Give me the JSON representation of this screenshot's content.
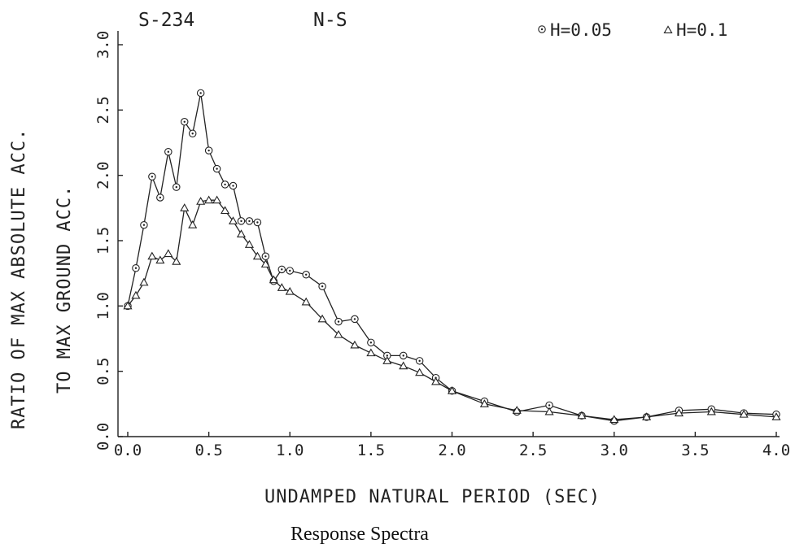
{
  "chart_data": {
    "type": "line",
    "station": "S-234",
    "component": "N-S",
    "xlabel": "UNDAMPED NATURAL PERIOD (SEC)",
    "ylabel": "RATIO OF MAX ABSOLUTE ACC.",
    "ylabel2": "TO MAX GROUND ACC.",
    "caption": "Response Spectra",
    "xlim": [
      0.0,
      4.0
    ],
    "ylim": [
      0.0,
      3.0
    ],
    "xticks": [
      "0.0",
      "0.5",
      "1.0",
      "1.5",
      "2.0",
      "2.5",
      "3.0",
      "3.5",
      "4.0"
    ],
    "yticks": [
      "0.0",
      "0.5",
      "1.0",
      "1.5",
      "2.0",
      "2.5",
      "3.0"
    ],
    "grid": false,
    "legend_position": "top-right",
    "series": [
      {
        "name": "H=0.05",
        "marker": "circle",
        "x": [
          0.0,
          0.05,
          0.1,
          0.15,
          0.2,
          0.25,
          0.3,
          0.35,
          0.4,
          0.45,
          0.5,
          0.55,
          0.6,
          0.65,
          0.7,
          0.75,
          0.8,
          0.85,
          0.9,
          0.95,
          1.0,
          1.1,
          1.2,
          1.3,
          1.4,
          1.5,
          1.6,
          1.7,
          1.8,
          1.9,
          2.0,
          2.2,
          2.4,
          2.6,
          2.8,
          3.0,
          3.2,
          3.4,
          3.6,
          3.8,
          4.0
        ],
        "y": [
          1.0,
          1.29,
          1.62,
          1.99,
          1.83,
          2.18,
          1.91,
          2.41,
          2.32,
          2.63,
          2.19,
          2.05,
          1.93,
          1.92,
          1.65,
          1.65,
          1.64,
          1.38,
          1.19,
          1.28,
          1.27,
          1.24,
          1.15,
          0.88,
          0.9,
          0.72,
          0.62,
          0.62,
          0.58,
          0.45,
          0.35,
          0.27,
          0.19,
          0.24,
          0.16,
          0.12,
          0.15,
          0.2,
          0.21,
          0.18,
          0.17
        ]
      },
      {
        "name": "H=0.1",
        "marker": "triangle",
        "x": [
          0.0,
          0.05,
          0.1,
          0.15,
          0.2,
          0.25,
          0.3,
          0.35,
          0.4,
          0.45,
          0.5,
          0.55,
          0.6,
          0.65,
          0.7,
          0.75,
          0.8,
          0.85,
          0.9,
          0.95,
          1.0,
          1.1,
          1.2,
          1.3,
          1.4,
          1.5,
          1.6,
          1.7,
          1.8,
          1.9,
          2.0,
          2.2,
          2.4,
          2.6,
          2.8,
          3.0,
          3.2,
          3.4,
          3.6,
          3.8,
          4.0
        ],
        "y": [
          1.0,
          1.08,
          1.18,
          1.38,
          1.35,
          1.4,
          1.34,
          1.75,
          1.62,
          1.8,
          1.81,
          1.81,
          1.73,
          1.65,
          1.55,
          1.47,
          1.38,
          1.32,
          1.2,
          1.14,
          1.11,
          1.03,
          0.9,
          0.78,
          0.7,
          0.64,
          0.58,
          0.54,
          0.49,
          0.42,
          0.35,
          0.25,
          0.2,
          0.19,
          0.16,
          0.13,
          0.15,
          0.18,
          0.19,
          0.17,
          0.15
        ]
      }
    ]
  }
}
